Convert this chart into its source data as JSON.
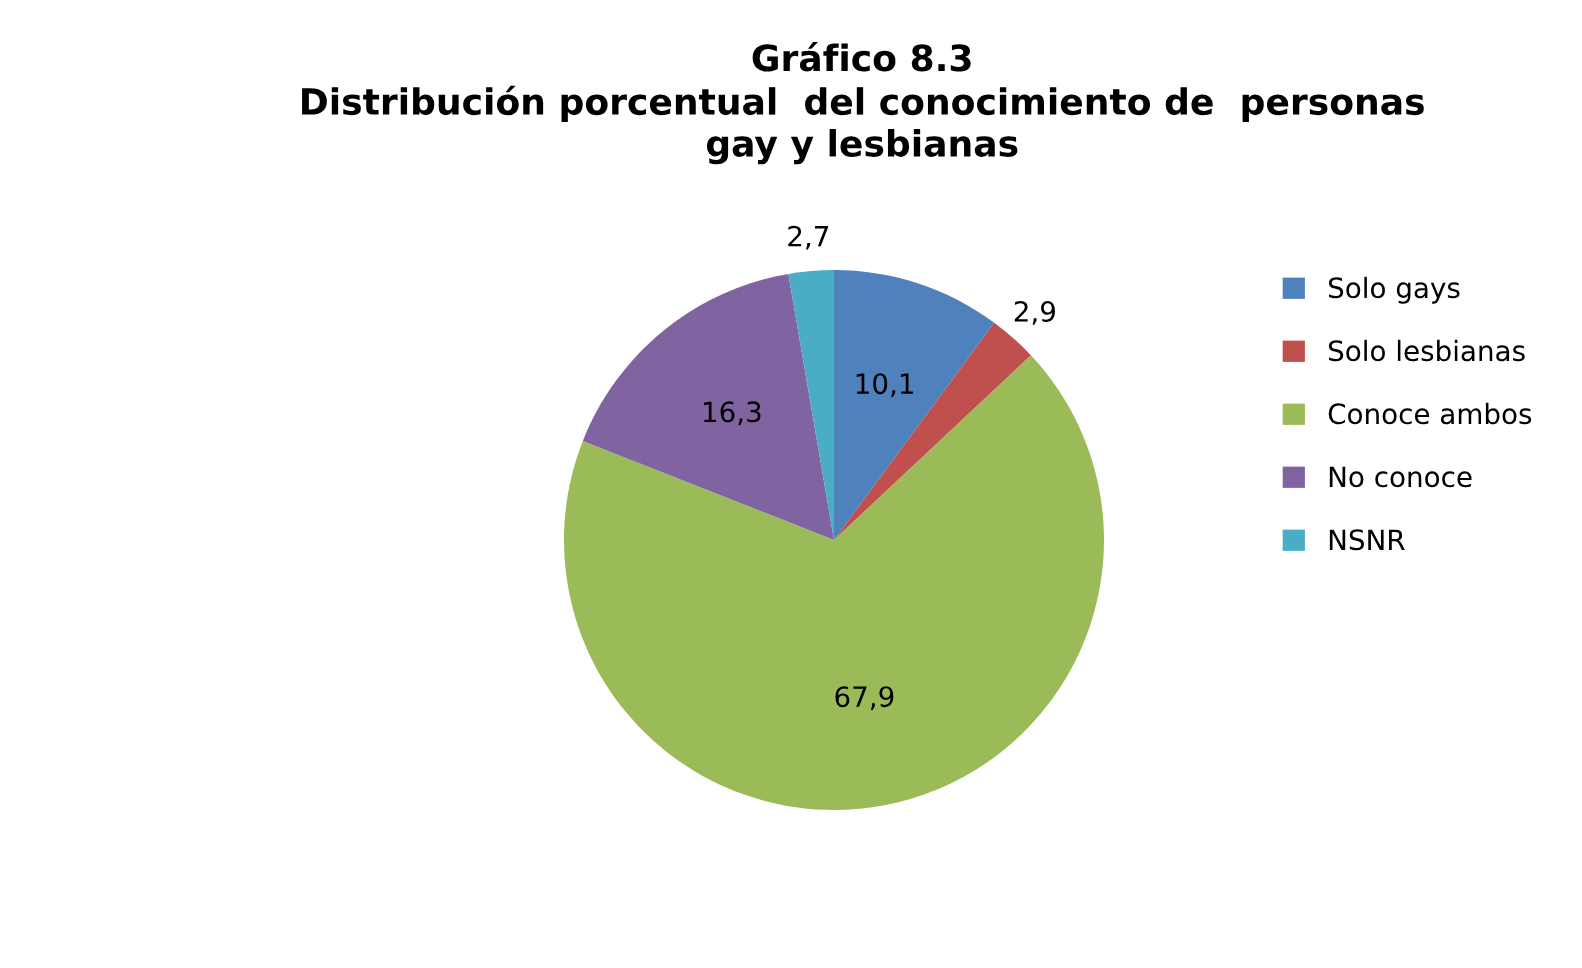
{
  "chart_data": {
    "type": "pie",
    "title": "Gráfico 8.3\nDistribución porcentual  del conocimiento de  personas\ngay y lesbianas",
    "categories": [
      "Solo gays",
      "Solo lesbianas",
      "Conoce ambos",
      "No conoce",
      "NSNR"
    ],
    "values": [
      10.1,
      2.9,
      67.9,
      16.3,
      2.7
    ],
    "value_labels": [
      "10,1",
      "2,9",
      "67,9",
      "16,3",
      "2,7"
    ],
    "colors": [
      "#4f81bd",
      "#c0504d",
      "#9bbb59",
      "#8064a2",
      "#4bacc6"
    ],
    "legend": "right"
  }
}
